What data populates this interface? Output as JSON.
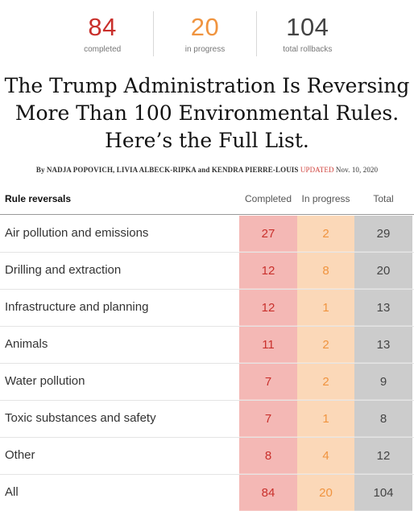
{
  "stats": [
    {
      "value": "84",
      "label": "completed",
      "color": "#c9302c"
    },
    {
      "value": "20",
      "label": "in progress",
      "color": "#f0943f"
    },
    {
      "value": "104",
      "label": "total rollbacks",
      "color": "#444444"
    }
  ],
  "title": [
    "The Trump Administration Is Reversing",
    "More Than 100 Environmental Rules.",
    "Here’s the Full List."
  ],
  "byline": {
    "authors": "By NADJA POPOVICH, LIVIA ALBECK-RIPKA and KENDRA PIERRE-LOUIS",
    "updated_label": "UPDATED",
    "date": "Nov. 10, 2020"
  },
  "table": {
    "headers": {
      "label": "Rule reversals",
      "completed": "Completed",
      "in_progress": "In progress",
      "total": "Total"
    },
    "rows": [
      {
        "label": "Air pollution and emissions",
        "completed": "27",
        "in_progress": "2",
        "total": "29"
      },
      {
        "label": "Drilling and extraction",
        "completed": "12",
        "in_progress": "8",
        "total": "20"
      },
      {
        "label": "Infrastructure and planning",
        "completed": "12",
        "in_progress": "1",
        "total": "13"
      },
      {
        "label": "Animals",
        "completed": "11",
        "in_progress": "2",
        "total": "13"
      },
      {
        "label": "Water pollution",
        "completed": "7",
        "in_progress": "2",
        "total": "9"
      },
      {
        "label": "Toxic substances and safety",
        "completed": "7",
        "in_progress": "1",
        "total": "8"
      },
      {
        "label": "Other",
        "completed": "8",
        "in_progress": "4",
        "total": "12"
      },
      {
        "label": "All",
        "completed": "84",
        "in_progress": "20",
        "total": "104"
      }
    ]
  },
  "colors": {
    "completed_bg": "#f4b8b5",
    "completed_text": "#c9302c",
    "in_progress_bg": "#fbd8b8",
    "in_progress_text": "#f0943f",
    "total_bg": "#cccccc",
    "updated": "#d0443f"
  }
}
